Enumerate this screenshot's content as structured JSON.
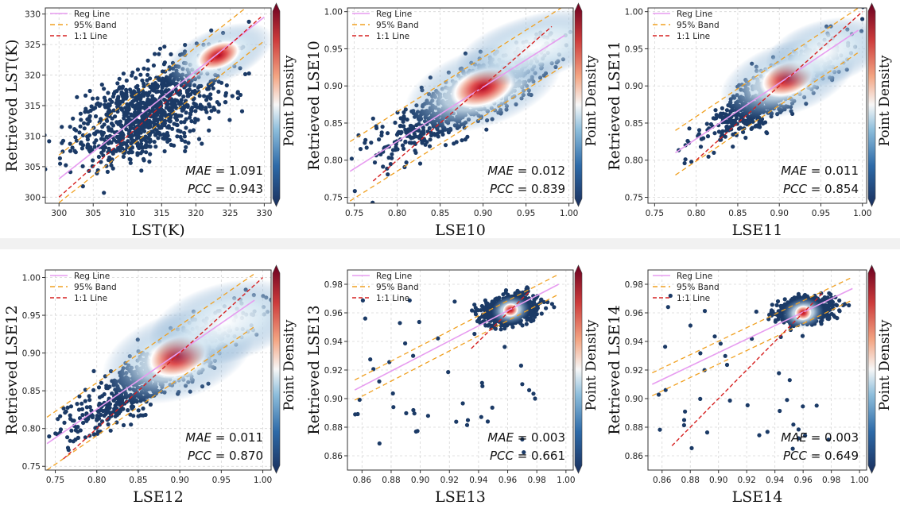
{
  "figure": {
    "colorbar_label": "Point Density",
    "colors": {
      "scatter": "#1b3a66",
      "reg_line": "#e79cf0",
      "band": "#f0a020",
      "one_to_one": "#d62020",
      "density_high": "#b0001e",
      "density_mid": "#ffffff"
    }
  },
  "chart_data": [
    {
      "type": "scatter",
      "xlabel": "LST(K)",
      "ylabel": "Retrieved LST(K)",
      "xlim": [
        298,
        331
      ],
      "ylim": [
        299,
        331
      ],
      "xticks": [
        "300",
        "305",
        "310",
        "315",
        "320",
        "325",
        "330"
      ],
      "yticks": [
        "300",
        "305",
        "310",
        "315",
        "320",
        "325",
        "330"
      ],
      "legend": [
        "Reg Line",
        "95% Band",
        "1:1 Line"
      ],
      "legend_position": "top-left",
      "mae": "1.091",
      "pcc": "0.943",
      "reg_line": {
        "x": [
          300,
          330
        ],
        "y": [
          303.0,
          329.5
        ]
      },
      "band_halfwidth": 3.9,
      "one_to_one": {
        "x": [
          300,
          329.5
        ]
      },
      "cloud": {
        "x_center": 313,
        "y_center": 314,
        "x_spread": 13,
        "y_spread": 10,
        "corr": 0.55
      },
      "hotspots": [
        {
          "x": 323.3,
          "y": 323.2,
          "sx": 1.6,
          "sy": 1.0,
          "rot": 0.7
        }
      ]
    },
    {
      "type": "scatter",
      "xlabel": "LSE10",
      "ylabel": "Retrieved LSE10",
      "xlim": [
        0.742,
        1.005
      ],
      "ylim": [
        0.742,
        1.005
      ],
      "xticks": [
        "0.75",
        "0.80",
        "0.85",
        "0.90",
        "0.95",
        "1.00"
      ],
      "yticks": [
        "0.75",
        "0.80",
        "0.85",
        "0.90",
        "0.95",
        "1.00"
      ],
      "legend": [
        "Reg Line",
        "95% Band",
        "1:1 Line"
      ],
      "legend_position": "top-left",
      "mae": "0.012",
      "pcc": "0.839",
      "reg_line": {
        "x": [
          0.745,
          0.995
        ],
        "y": [
          0.785,
          0.968
        ]
      },
      "band_halfwidth": 0.04,
      "one_to_one": {
        "x": [
          0.772,
          0.98
        ]
      },
      "cloud": {
        "x_center": 0.885,
        "y_center": 0.885,
        "x_spread": 0.11,
        "y_spread": 0.085,
        "corr": 0.85
      },
      "hotspots": [
        {
          "x": 0.9,
          "y": 0.898,
          "sx": 0.018,
          "sy": 0.012,
          "rot": 0.6
        },
        {
          "x": 0.96,
          "y": 0.952,
          "sx": 0.018,
          "sy": 0.01,
          "rot": 0.5
        }
      ]
    },
    {
      "type": "scatter",
      "xlabel": "LSE11",
      "ylabel": "Retrieved LSE11",
      "xlim": [
        0.742,
        1.005
      ],
      "ylim": [
        0.742,
        1.005
      ],
      "xticks": [
        "0.75",
        "0.80",
        "0.85",
        "0.90",
        "0.95",
        "1.00"
      ],
      "yticks": [
        "0.75",
        "0.80",
        "0.85",
        "0.90",
        "0.95",
        "1.00"
      ],
      "legend": [
        "Reg Line",
        "95% Band",
        "1:1 Line"
      ],
      "legend_position": "top-left",
      "mae": "0.011",
      "pcc": "0.854",
      "reg_line": {
        "x": [
          0.775,
          0.995
        ],
        "y": [
          0.81,
          0.975
        ]
      },
      "band_halfwidth": 0.03,
      "one_to_one": {
        "x": [
          0.8,
          1.0
        ]
      },
      "cloud": {
        "x_center": 0.895,
        "y_center": 0.895,
        "x_spread": 0.09,
        "y_spread": 0.075,
        "corr": 0.85
      },
      "hotspots": [
        {
          "x": 0.91,
          "y": 0.91,
          "sx": 0.016,
          "sy": 0.011,
          "rot": 0.6
        },
        {
          "x": 0.955,
          "y": 0.945,
          "sx": 0.014,
          "sy": 0.01,
          "rot": 0.5
        }
      ]
    },
    {
      "type": "scatter",
      "xlabel": "LSE12",
      "ylabel": "Retrieved LSE12",
      "xlim": [
        0.738,
        1.01
      ],
      "ylim": [
        0.745,
        1.01
      ],
      "xticks": [
        "0.75",
        "0.80",
        "0.85",
        "0.90",
        "0.95",
        "1.00"
      ],
      "yticks": [
        "0.75",
        "0.80",
        "0.85",
        "0.90",
        "0.95",
        "1.00"
      ],
      "legend": [
        "Reg Line",
        "95% Band",
        "1:1 Line"
      ],
      "legend_position": "top-left",
      "mae": "0.011",
      "pcc": "0.870",
      "reg_line": {
        "x": [
          0.74,
          0.99
        ],
        "y": [
          0.78,
          0.97
        ]
      },
      "band_halfwidth": 0.035,
      "one_to_one": {
        "x": [
          0.76,
          1.0
        ]
      },
      "cloud": {
        "x_center": 0.875,
        "y_center": 0.875,
        "x_spread": 0.12,
        "y_spread": 0.09,
        "corr": 0.88
      },
      "hotspots": [
        {
          "x": 0.898,
          "y": 0.896,
          "sx": 0.018,
          "sy": 0.013,
          "rot": 0.6
        },
        {
          "x": 0.955,
          "y": 0.94,
          "sx": 0.018,
          "sy": 0.012,
          "rot": 0.5
        }
      ]
    },
    {
      "type": "scatter",
      "xlabel": "LSE13",
      "ylabel": "Retrieved LSE13",
      "xlim": [
        0.85,
        1.005
      ],
      "ylim": [
        0.85,
        0.99
      ],
      "xticks": [
        "0.86",
        "0.88",
        "0.90",
        "0.92",
        "0.94",
        "0.96",
        "0.98",
        "1.00"
      ],
      "yticks": [
        "0.86",
        "0.88",
        "0.90",
        "0.92",
        "0.94",
        "0.96",
        "0.98"
      ],
      "legend": [
        "Reg Line",
        "95% Band",
        "1:1 Line"
      ],
      "legend_position": "top-left",
      "mae": "0.003",
      "pcc": "0.661",
      "reg_line": {
        "x": [
          0.855,
          0.995
        ],
        "y": [
          0.906,
          0.98
        ]
      },
      "band_halfwidth": 0.007,
      "one_to_one": {
        "x": [
          0.935,
          0.975
        ]
      },
      "cloud": {
        "x_center": 0.962,
        "y_center": 0.962,
        "x_spread": 0.02,
        "y_spread": 0.011,
        "corr": 0.3
      },
      "hotspots": [
        {
          "x": 0.962,
          "y": 0.962,
          "sx": 0.0025,
          "sy": 0.0022,
          "rot": 0.3
        }
      ]
    },
    {
      "type": "scatter",
      "xlabel": "LSE14",
      "ylabel": "Retrieved LSE14",
      "xlim": [
        0.85,
        1.005
      ],
      "ylim": [
        0.85,
        0.99
      ],
      "xticks": [
        "0.86",
        "0.88",
        "0.90",
        "0.92",
        "0.94",
        "0.96",
        "0.98",
        "1.00"
      ],
      "yticks": [
        "0.86",
        "0.88",
        "0.90",
        "0.92",
        "0.94",
        "0.96",
        "0.98"
      ],
      "legend": [
        "Reg Line",
        "95% Band",
        "1:1 Line"
      ],
      "legend_position": "top-left",
      "mae": "0.003",
      "pcc": "0.649",
      "reg_line": {
        "x": [
          0.853,
          0.995
        ],
        "y": [
          0.91,
          0.977
        ]
      },
      "band_halfwidth": 0.008,
      "one_to_one": {
        "x": [
          0.867,
          0.975
        ]
      },
      "cloud": {
        "x_center": 0.962,
        "y_center": 0.962,
        "x_spread": 0.022,
        "y_spread": 0.01,
        "corr": 0.25
      },
      "hotspots": [
        {
          "x": 0.96,
          "y": 0.96,
          "sx": 0.0028,
          "sy": 0.0024,
          "rot": 0.3
        }
      ]
    }
  ]
}
